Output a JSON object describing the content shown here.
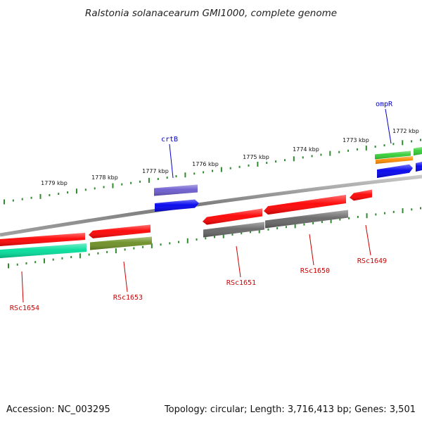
{
  "title": "Ralstonia solanacearum GMI1000, complete genome",
  "footer": {
    "accession": "Accession: NC_003295",
    "topology": "Topology: circular; Length: 3,716,413 bp; Genes: 3,501"
  },
  "colors": {
    "backbone": "#888888",
    "ticks": "#2e8b2e",
    "label_named": "#0000cc",
    "label_locus": "#cc0000",
    "red": "#ff0000",
    "blue": "#0000ee",
    "purple": "#6a5acd",
    "gray": "#666666",
    "olive": "#6b8e23",
    "spring": "#00dd99",
    "green": "#32cd32",
    "orange": "#ff8c00"
  },
  "ticks": [
    {
      "label": "1779 kbp"
    },
    {
      "label": "1778 kbp"
    },
    {
      "label": "1777 kbp"
    },
    {
      "label": "1776 kbp"
    },
    {
      "label": "1775 kbp"
    },
    {
      "label": "1774 kbp"
    },
    {
      "label": "1773 kbp"
    },
    {
      "label": "1772 kbp"
    }
  ],
  "features": [
    {
      "name": "red-feature-far-left-inner"
    },
    {
      "name": "spring-feature-far-left"
    },
    {
      "name": "red-feature-rsc1653"
    },
    {
      "name": "olive-feature-rsc1653"
    },
    {
      "name": "purple-feature-crtb"
    },
    {
      "name": "blue-feature-crtb"
    },
    {
      "name": "red-feature-rsc1651"
    },
    {
      "name": "gray-feature-rsc1651"
    },
    {
      "name": "red-feature-rsc1650"
    },
    {
      "name": "gray-feature-rsc1650"
    },
    {
      "name": "red-feature-rsc1649"
    },
    {
      "name": "green-feature-ompr"
    },
    {
      "name": "orange-feature-ompr"
    },
    {
      "name": "blue-feature-ompr"
    },
    {
      "name": "green-feature-right-edge"
    },
    {
      "name": "blue-feature-right-edge"
    }
  ],
  "gene_labels": [
    {
      "text": "crtB",
      "kind": "named"
    },
    {
      "text": "ompR",
      "kind": "named"
    },
    {
      "text": "RSc1654",
      "kind": "locus"
    },
    {
      "text": "RSc1653",
      "kind": "locus"
    },
    {
      "text": "RSc1651",
      "kind": "locus"
    },
    {
      "text": "RSc1650",
      "kind": "locus"
    },
    {
      "text": "RSc1649",
      "kind": "locus"
    }
  ]
}
